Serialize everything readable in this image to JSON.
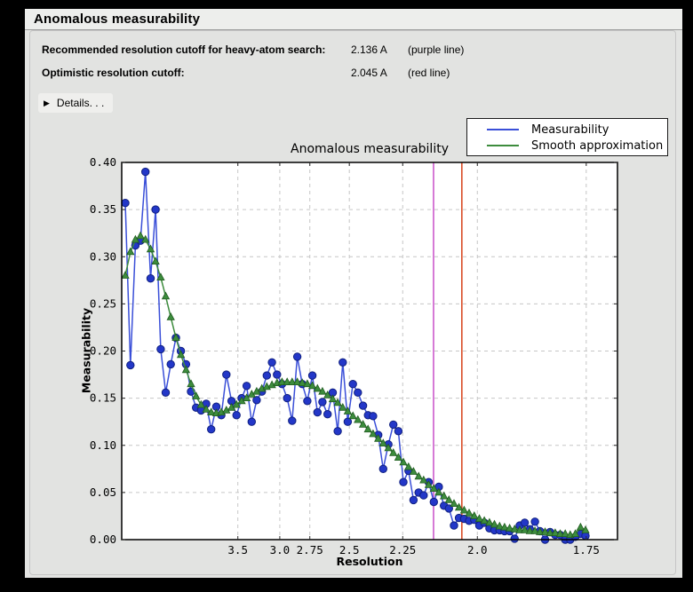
{
  "window": {
    "title": "Anomalous measurability"
  },
  "info": {
    "rows": [
      {
        "label": "Recommended resolution cutoff for heavy-atom search:",
        "value": "2.136 A",
        "note": "(purple line)"
      },
      {
        "label": "Optimistic resolution cutoff:",
        "value": "2.045 A",
        "note": "(red line)"
      }
    ],
    "details_label": "Details. . ."
  },
  "chart_data": {
    "type": "line",
    "title": "Anomalous measurability",
    "xlabel": "Resolution",
    "ylabel": "Measurability",
    "grid": true,
    "legend_position": "top-right",
    "x_axis": {
      "scale": "inverse_d_squared",
      "range": [
        0.0,
        0.3485
      ],
      "ticks": [
        {
          "label": "3.5",
          "s": 0.08163
        },
        {
          "label": "3.0",
          "s": 0.11111
        },
        {
          "label": "2.75",
          "s": 0.13223
        },
        {
          "label": "2.5",
          "s": 0.16
        },
        {
          "label": "2.25",
          "s": 0.19753
        },
        {
          "label": "2.0",
          "s": 0.25
        },
        {
          "label": "1.75",
          "s": 0.32653
        }
      ]
    },
    "y_axis": {
      "range": [
        0.0,
        0.4
      ],
      "ticks": [
        {
          "label": "0.00",
          "v": 0.0
        },
        {
          "label": "0.05",
          "v": 0.05
        },
        {
          "label": "0.10",
          "v": 0.1
        },
        {
          "label": "0.15",
          "v": 0.15
        },
        {
          "label": "0.20",
          "v": 0.2
        },
        {
          "label": "0.25",
          "v": 0.25
        },
        {
          "label": "0.30",
          "v": 0.3
        },
        {
          "label": "0.35",
          "v": 0.35
        },
        {
          "label": "0.40",
          "v": 0.4
        }
      ]
    },
    "x_inv_d_sq": [
      0.0025,
      0.0061,
      0.0096,
      0.0132,
      0.0167,
      0.0203,
      0.0238,
      0.0274,
      0.0309,
      0.0345,
      0.0381,
      0.0416,
      0.0452,
      0.0487,
      0.0523,
      0.0558,
      0.0594,
      0.0629,
      0.0665,
      0.07,
      0.0736,
      0.0772,
      0.0807,
      0.0843,
      0.0878,
      0.0914,
      0.0949,
      0.0985,
      0.102,
      0.1056,
      0.1092,
      0.1127,
      0.1163,
      0.1198,
      0.1234,
      0.1269,
      0.1305,
      0.134,
      0.1376,
      0.1411,
      0.1447,
      0.1483,
      0.1518,
      0.1554,
      0.1589,
      0.1625,
      0.166,
      0.1696,
      0.1731,
      0.1767,
      0.1803,
      0.1838,
      0.1874,
      0.1909,
      0.1945,
      0.198,
      0.2016,
      0.2051,
      0.2087,
      0.2122,
      0.2158,
      0.2194,
      0.2229,
      0.2265,
      0.23,
      0.2336,
      0.2371,
      0.2407,
      0.2442,
      0.2478,
      0.2514,
      0.2549,
      0.2585,
      0.262,
      0.2656,
      0.2691,
      0.2727,
      0.2762,
      0.2798,
      0.2833,
      0.2869,
      0.2905,
      0.294,
      0.2976,
      0.3011,
      0.3047,
      0.3082,
      0.3118,
      0.3153,
      0.3189,
      0.3225,
      0.326
    ],
    "series": [
      {
        "name": "Measurability",
        "color": "#3a4fd8",
        "marker": "circle",
        "marker_fill": "#2337c8",
        "marker_edge": "#10207f",
        "values": [
          0.357,
          0.185,
          0.312,
          0.317,
          0.39,
          0.277,
          0.35,
          0.202,
          0.156,
          0.186,
          0.214,
          0.2,
          0.186,
          0.157,
          0.14,
          0.137,
          0.144,
          0.117,
          0.141,
          0.132,
          0.175,
          0.147,
          0.132,
          0.15,
          0.163,
          0.125,
          0.148,
          0.157,
          0.174,
          0.188,
          0.175,
          0.165,
          0.15,
          0.126,
          0.194,
          0.165,
          0.147,
          0.174,
          0.135,
          0.146,
          0.133,
          0.156,
          0.115,
          0.188,
          0.125,
          0.165,
          0.156,
          0.142,
          0.132,
          0.131,
          0.111,
          0.075,
          0.101,
          0.122,
          0.115,
          0.061,
          0.073,
          0.042,
          0.05,
          0.047,
          0.061,
          0.04,
          0.056,
          0.036,
          0.033,
          0.015,
          0.023,
          0.022,
          0.02,
          0.021,
          0.015,
          0.018,
          0.012,
          0.01,
          0.01,
          0.009,
          0.009,
          0.001,
          0.015,
          0.018,
          0.011,
          0.019,
          0.009,
          0.0,
          0.008,
          0.005,
          0.005,
          0.0,
          0.0,
          0.003,
          0.006,
          0.004
        ]
      },
      {
        "name": "Smooth approximation",
        "color": "#3d8c3d",
        "marker": "triangle",
        "marker_fill": "#3d8c3d",
        "marker_edge": "#205c20",
        "values": [
          0.28,
          0.305,
          0.318,
          0.322,
          0.318,
          0.308,
          0.295,
          0.278,
          0.258,
          0.236,
          0.214,
          0.196,
          0.18,
          0.165,
          0.152,
          0.143,
          0.138,
          0.135,
          0.134,
          0.135,
          0.137,
          0.14,
          0.143,
          0.147,
          0.15,
          0.154,
          0.157,
          0.16,
          0.162,
          0.164,
          0.166,
          0.167,
          0.167,
          0.167,
          0.167,
          0.166,
          0.165,
          0.163,
          0.16,
          0.157,
          0.153,
          0.149,
          0.145,
          0.14,
          0.136,
          0.131,
          0.127,
          0.122,
          0.117,
          0.112,
          0.107,
          0.102,
          0.097,
          0.092,
          0.087,
          0.082,
          0.077,
          0.072,
          0.067,
          0.063,
          0.058,
          0.054,
          0.05,
          0.046,
          0.042,
          0.038,
          0.034,
          0.031,
          0.028,
          0.025,
          0.022,
          0.02,
          0.018,
          0.016,
          0.014,
          0.013,
          0.012,
          0.011,
          0.01,
          0.01,
          0.009,
          0.009,
          0.008,
          0.008,
          0.007,
          0.007,
          0.006,
          0.006,
          0.005,
          0.006,
          0.013,
          0.01
        ]
      }
    ],
    "vlines": [
      {
        "label": "purple line",
        "d": "2.136",
        "s": 0.2192,
        "color": "#c94fc9"
      },
      {
        "label": "red line",
        "d": "2.045",
        "s": 0.2391,
        "color": "#d64018"
      }
    ]
  },
  "colors": {
    "window_bg": "#e3e4e2",
    "titlebar_bg": "#edeeec",
    "plot_bg": "#ffffff",
    "grid": "#c6c6c6",
    "axis": "#000000"
  }
}
